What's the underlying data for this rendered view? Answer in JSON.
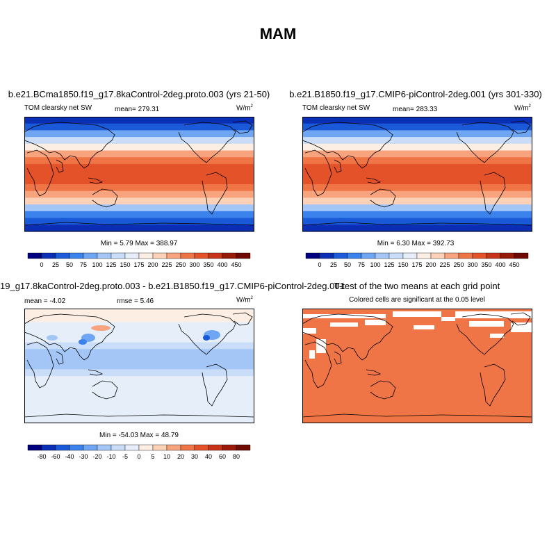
{
  "figure": {
    "title": "MAM"
  },
  "panels": [
    {
      "id": "p1",
      "title": "b.e21.BCma1850.f19_g17.8kaControl-2deg.proto.003 (yrs 21-50)",
      "left_label": "TOM clearsky net SW",
      "center_label": "mean= 279.31",
      "units": "W/m",
      "units_sup": "2",
      "minmax": "Min =   5.79 Max = 388.97"
    },
    {
      "id": "p2",
      "title": "b.e21.B1850.f19_g17.CMIP6-piControl-2deg.001 (yrs 301-330)",
      "left_label": "TOM clearsky net SW",
      "center_label": "mean= 283.33",
      "units": "W/m",
      "units_sup": "2",
      "minmax": "Min =   6.30 Max = 392.73"
    },
    {
      "id": "p3",
      "title": "19_g17.8kaControl-2deg.proto.003 - b.e21.B1850.f19_g17.CMIP6-piControl-2deg.001",
      "left_label": "mean =  -4.02",
      "center_label": "rmse =   5.46",
      "units": "W/m",
      "units_sup": "2",
      "minmax": "Min = -54.03 Max =  48.79"
    },
    {
      "id": "p4",
      "title": "T-test of the two means at each grid point",
      "subtitle": "Colored cells are significant at the 0.05 level"
    }
  ],
  "colorbars": {
    "absolute": {
      "labels": [
        "0",
        "25",
        "50",
        "75",
        "100",
        "125",
        "150",
        "175",
        "200",
        "225",
        "250",
        "300",
        "350",
        "400",
        "450"
      ],
      "colors": [
        "#00007f",
        "#0a2fb5",
        "#1a5ad8",
        "#3c82ec",
        "#6fa6f3",
        "#a3c6f7",
        "#c9ddf8",
        "#e6eef9",
        "#fdeee4",
        "#fbd1b7",
        "#f6a37e",
        "#ef7446",
        "#e4522a",
        "#c8341a",
        "#9a1a0a",
        "#6e0a02"
      ]
    },
    "difference": {
      "labels": [
        "-80",
        "-60",
        "-40",
        "-30",
        "-20",
        "-10",
        "-5",
        "0",
        "5",
        "10",
        "20",
        "30",
        "40",
        "60",
        "80"
      ],
      "colors": [
        "#00007f",
        "#0a2fb5",
        "#1a5ad8",
        "#3c82ec",
        "#6fa6f3",
        "#a3c6f7",
        "#c9ddf8",
        "#e6eef9",
        "#fdeee4",
        "#fbd1b7",
        "#f6a37e",
        "#ef7446",
        "#e4522a",
        "#c8341a",
        "#9a1a0a",
        "#6e0a02"
      ]
    }
  },
  "map_colors": {
    "abs_bands": [
      "#0a2fb5",
      "#1a5ad8",
      "#6fa6f3",
      "#c9ddf8",
      "#fdeee4",
      "#f6a37e",
      "#ef7446",
      "#e4522a",
      "#e4522a",
      "#e4522a",
      "#ef7446",
      "#f6a37e",
      "#fbd1b7",
      "#a3c6f7",
      "#3c82ec",
      "#1a5ad8",
      "#0a2fb5"
    ],
    "diff_bands": [
      "#fdeee4",
      "#fdeee4",
      "#e6eef9",
      "#e6eef9",
      "#e6eef9",
      "#c9ddf8",
      "#a3c6f7",
      "#a3c6f7",
      "#a3c6f7",
      "#c9ddf8",
      "#e6eef9",
      "#e6eef9",
      "#e6eef9",
      "#e6eef9",
      "#e6eef9",
      "#e6eef9",
      "#e6eef9"
    ],
    "ttest_fill": "#ef7446",
    "coast": "#000000"
  }
}
